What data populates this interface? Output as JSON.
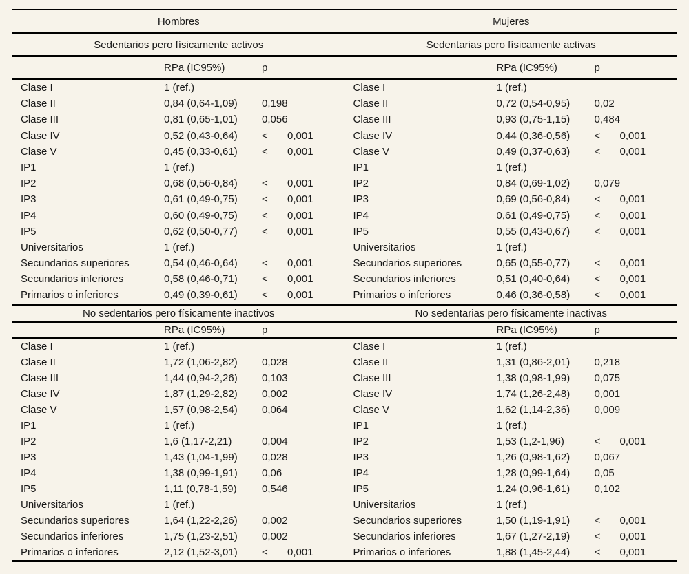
{
  "colors": {
    "background": "#f7f3ea",
    "rule": "#000000",
    "text": "#1a1a1a"
  },
  "table": {
    "genders": [
      "Hombres",
      "Mujeres"
    ],
    "col_header": {
      "rpa": "RPa (IC95%)",
      "p": "p"
    },
    "sections": [
      {
        "titles": [
          "Sedentarios pero físicamente activos",
          "Sedentarias pero físicamente activas"
        ],
        "rows": [
          {
            "label": "Clase I",
            "men": {
              "rpa": "1 (ref.)",
              "lt": false,
              "p": ""
            },
            "women": {
              "rpa": "1 (ref.)",
              "lt": false,
              "p": ""
            }
          },
          {
            "label": "Clase II",
            "men": {
              "rpa": "0,84 (0,64-1,09)",
              "lt": false,
              "p": "0,198"
            },
            "women": {
              "rpa": "0,72 (0,54-0,95)",
              "lt": false,
              "p": "0,02"
            }
          },
          {
            "label": "Clase III",
            "men": {
              "rpa": "0,81 (0,65-1,01)",
              "lt": false,
              "p": "0,056"
            },
            "women": {
              "rpa": "0,93 (0,75-1,15)",
              "lt": false,
              "p": "0,484"
            }
          },
          {
            "label": "Clase IV",
            "men": {
              "rpa": "0,52 (0,43-0,64)",
              "lt": true,
              "p": "0,001"
            },
            "women": {
              "rpa": "0,44 (0,36-0,56)",
              "lt": true,
              "p": "0,001"
            }
          },
          {
            "label": "Clase V",
            "men": {
              "rpa": "0,45 (0,33-0,61)",
              "lt": true,
              "p": "0,001"
            },
            "women": {
              "rpa": "0,49 (0,37-0,63)",
              "lt": true,
              "p": "0,001"
            }
          },
          {
            "label": "IP1",
            "men": {
              "rpa": "1 (ref.)",
              "lt": false,
              "p": ""
            },
            "women": {
              "rpa": "1 (ref.)",
              "lt": false,
              "p": ""
            }
          },
          {
            "label": "IP2",
            "men": {
              "rpa": "0,68 (0,56-0,84)",
              "lt": true,
              "p": "0,001"
            },
            "women": {
              "rpa": "0,84 (0,69-1,02)",
              "lt": false,
              "p": "0,079"
            }
          },
          {
            "label": "IP3",
            "men": {
              "rpa": "0,61 (0,49-0,75)",
              "lt": true,
              "p": "0,001"
            },
            "women": {
              "rpa": "0,69 (0,56-0,84)",
              "lt": true,
              "p": "0,001"
            }
          },
          {
            "label": "IP4",
            "men": {
              "rpa": "0,60 (0,49-0,75)",
              "lt": true,
              "p": "0,001"
            },
            "women": {
              "rpa": "0,61 (0,49-0,75)",
              "lt": true,
              "p": "0,001"
            }
          },
          {
            "label": "IP5",
            "men": {
              "rpa": "0,62 (0,50-0,77)",
              "lt": true,
              "p": "0,001"
            },
            "women": {
              "rpa": "0,55 (0,43-0,67)",
              "lt": true,
              "p": "0,001"
            }
          },
          {
            "label": "Universitarios",
            "men": {
              "rpa": "1 (ref.)",
              "lt": false,
              "p": ""
            },
            "women": {
              "rpa": "1 (ref.)",
              "lt": false,
              "p": ""
            }
          },
          {
            "label": "Secundarios superiores",
            "men": {
              "rpa": "0,54 (0,46-0,64)",
              "lt": true,
              "p": "0,001"
            },
            "women": {
              "rpa": "0,65 (0,55-0,77)",
              "lt": true,
              "p": "0,001"
            }
          },
          {
            "label": "Secundarios inferiores",
            "men": {
              "rpa": "0,58 (0,46-0,71)",
              "lt": true,
              "p": "0,001"
            },
            "women": {
              "rpa": "0,51 (0,40-0,64)",
              "lt": true,
              "p": "0,001"
            }
          },
          {
            "label": "Primarios o inferiores",
            "men": {
              "rpa": "0,49 (0,39-0,61)",
              "lt": true,
              "p": "0,001"
            },
            "women": {
              "rpa": "0,46 (0,36-0,58)",
              "lt": true,
              "p": "0,001"
            }
          }
        ]
      },
      {
        "titles": [
          "No sedentarios pero físicamente inactivos",
          "No sedentarias pero físicamente inactivas"
        ],
        "rows": [
          {
            "label": "Clase I",
            "men": {
              "rpa": "1 (ref.)",
              "lt": false,
              "p": ""
            },
            "women": {
              "rpa": "1 (ref.)",
              "lt": false,
              "p": ""
            }
          },
          {
            "label": "Clase II",
            "men": {
              "rpa": "1,72 (1,06-2,82)",
              "lt": false,
              "p": "0,028"
            },
            "women": {
              "rpa": "1,31 (0,86-2,01)",
              "lt": false,
              "p": "0,218"
            }
          },
          {
            "label": "Clase III",
            "men": {
              "rpa": "1,44 (0,94-2,26)",
              "lt": false,
              "p": "0,103"
            },
            "women": {
              "rpa": "1,38 (0,98-1,99)",
              "lt": false,
              "p": "0,075"
            }
          },
          {
            "label": "Clase IV",
            "men": {
              "rpa": "1,87 (1,29-2,82)",
              "lt": false,
              "p": "0,002"
            },
            "women": {
              "rpa": "1,74 (1,26-2,48)",
              "lt": false,
              "p": "0,001"
            }
          },
          {
            "label": "Clase V",
            "men": {
              "rpa": "1,57 (0,98-2,54)",
              "lt": false,
              "p": "0,064"
            },
            "women": {
              "rpa": "1,62 (1,14-2,36)",
              "lt": false,
              "p": "0,009"
            }
          },
          {
            "label": "IP1",
            "men": {
              "rpa": "1 (ref.)",
              "lt": false,
              "p": ""
            },
            "women": {
              "rpa": "1 (ref.)",
              "lt": false,
              "p": ""
            }
          },
          {
            "label": "IP2",
            "men": {
              "rpa": "1,6 (1,17-2,21)",
              "lt": false,
              "p": "0,004"
            },
            "women": {
              "rpa": "1,53 (1,2-1,96)",
              "lt": true,
              "p": "0,001"
            }
          },
          {
            "label": "IP3",
            "men": {
              "rpa": "1,43 (1,04-1,99)",
              "lt": false,
              "p": "0,028"
            },
            "women": {
              "rpa": "1,26 (0,98-1,62)",
              "lt": false,
              "p": "0,067"
            }
          },
          {
            "label": "IP4",
            "men": {
              "rpa": "1,38 (0,99-1,91)",
              "lt": false,
              "p": "0,06"
            },
            "women": {
              "rpa": "1,28 (0,99-1,64)",
              "lt": false,
              "p": "0,05"
            }
          },
          {
            "label": "IP5",
            "men": {
              "rpa": "1,11 (0,78-1,59)",
              "lt": false,
              "p": "0,546"
            },
            "women": {
              "rpa": "1,24 (0,96-1,61)",
              "lt": false,
              "p": "0,102"
            }
          },
          {
            "label": "Universitarios",
            "men": {
              "rpa": "1 (ref.)",
              "lt": false,
              "p": ""
            },
            "women": {
              "rpa": "1 (ref.)",
              "lt": false,
              "p": ""
            }
          },
          {
            "label": "Secundarios superiores",
            "men": {
              "rpa": "1,64 (1,22-2,26)",
              "lt": false,
              "p": "0,002"
            },
            "women": {
              "rpa": "1,50 (1,19-1,91)",
              "lt": true,
              "p": "0,001"
            }
          },
          {
            "label": "Secundarios inferiores",
            "men": {
              "rpa": "1,75 (1,23-2,51)",
              "lt": false,
              "p": "0,002"
            },
            "women": {
              "rpa": "1,67 (1,27-2,19)",
              "lt": true,
              "p": "0,001"
            }
          },
          {
            "label": "Primarios o inferiores",
            "men": {
              "rpa": "2,12 (1,52-3,01)",
              "lt": true,
              "p": "0,001"
            },
            "women": {
              "rpa": "1,88 (1,45-2,44)",
              "lt": true,
              "p": "0,001"
            }
          }
        ]
      }
    ]
  }
}
